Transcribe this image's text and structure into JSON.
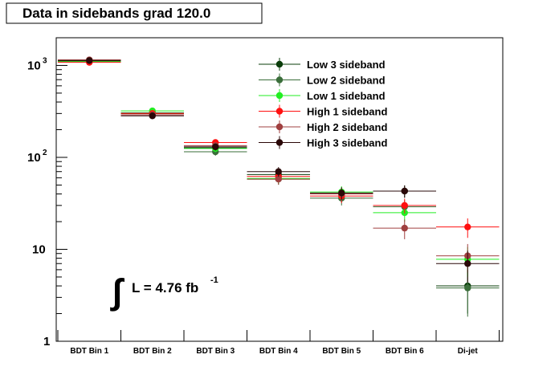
{
  "chart_data": {
    "type": "scatter",
    "title": "Data in sidebands grad 120.0",
    "xlabel": "",
    "ylabel": "",
    "yscale": "log",
    "ylim": [
      1,
      2000
    ],
    "grid": false,
    "legend_position": "top-right",
    "categories": [
      "BDT Bin 1",
      "BDT Bin 2",
      "BDT Bin 3",
      "BDT Bin 4",
      "BDT Bin 5",
      "BDT Bin 6",
      "Di-jet"
    ],
    "y_tick_labels": [
      "1",
      "10",
      "10",
      "10"
    ],
    "y_tick_exponents": [
      "",
      "",
      "2",
      "3"
    ],
    "series": [
      {
        "name": "Low 3 sideband",
        "color": "#0a3d0a",
        "values": [
          1110,
          300,
          127,
          65,
          40,
          43,
          4.0
        ]
      },
      {
        "name": "Low 2 sideband",
        "color": "#3a6e3a",
        "values": [
          1120,
          305,
          115,
          58,
          36,
          29,
          3.8
        ]
      },
      {
        "name": "Low 1 sideband",
        "color": "#22ee22",
        "values": [
          1100,
          320,
          125,
          59,
          42,
          25,
          7.8
        ]
      },
      {
        "name": "High 1 sideband",
        "color": "#ff1010",
        "values": [
          1080,
          300,
          145,
          62,
          38,
          30,
          17.5
        ]
      },
      {
        "name": "High 2 sideband",
        "color": "#a04040",
        "values": [
          1150,
          290,
          134,
          58,
          40,
          17,
          8.5
        ]
      },
      {
        "name": "High 3 sideband",
        "color": "#2a0808",
        "values": [
          1130,
          283,
          130,
          70,
          41,
          43,
          7.0
        ]
      }
    ],
    "annotation": {
      "text": "L = 4.76 fb",
      "superscript": "-1"
    }
  }
}
